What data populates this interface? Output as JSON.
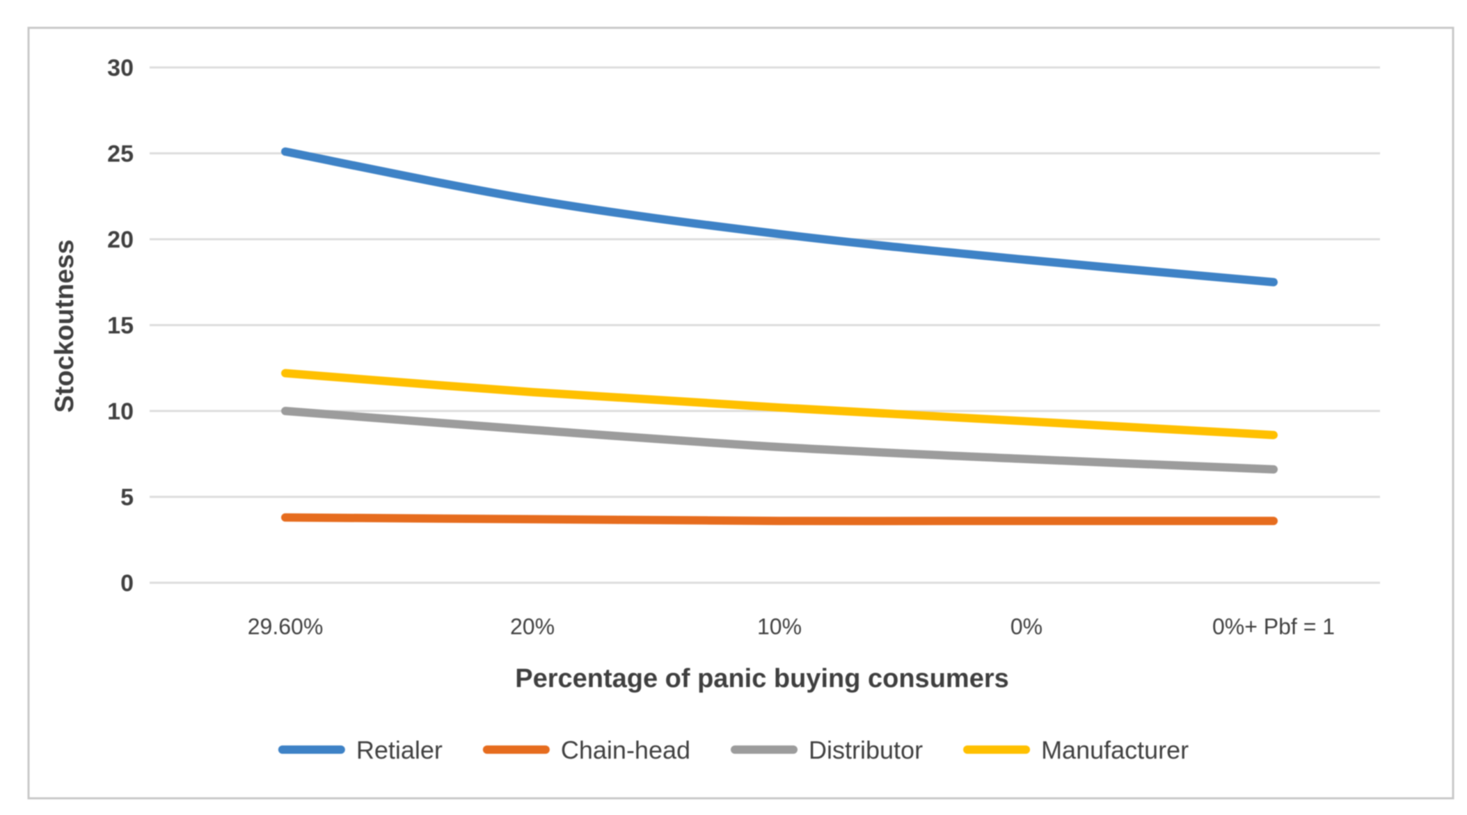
{
  "figure": {
    "background_color": "#ffffff",
    "border_color": "#c8c8c8",
    "gridline_color": "#dddddd",
    "text_color": "#404040"
  },
  "chart_data": {
    "type": "line",
    "title": "",
    "xlabel": "Percentage of panic buying consumers",
    "ylabel": "Stockoutness",
    "categories": [
      "29.60%",
      "20%",
      "10%",
      "0%",
      "0%+ Pbf = 1"
    ],
    "series": [
      {
        "name": "Retialer",
        "color": "#3E82C6",
        "values": [
          25.1,
          22.3,
          20.3,
          18.8,
          17.5
        ]
      },
      {
        "name": "Chain-head",
        "color": "#E66C1E",
        "values": [
          3.8,
          3.7,
          3.6,
          3.6,
          3.6
        ]
      },
      {
        "name": "Distributor",
        "color": "#9C9C9C",
        "values": [
          10.0,
          8.9,
          7.9,
          7.2,
          6.6
        ]
      },
      {
        "name": "Manufacturer",
        "color": "#FFC000",
        "values": [
          12.2,
          11.1,
          10.2,
          9.4,
          8.6
        ]
      }
    ],
    "y_ticks": [
      0,
      5,
      10,
      15,
      20,
      25,
      30
    ],
    "ylim": [
      0,
      30
    ],
    "grid": "horizontal",
    "legend_position": "bottom"
  }
}
